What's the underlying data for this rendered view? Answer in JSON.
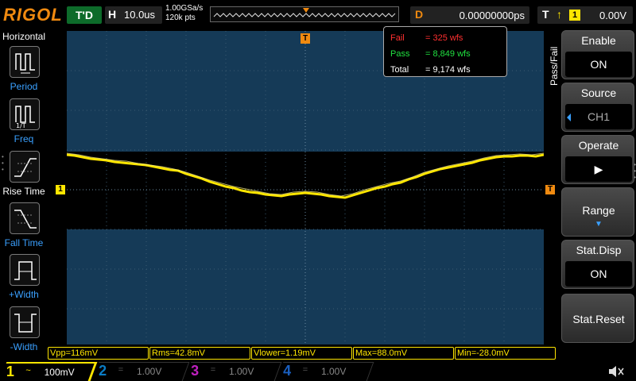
{
  "top": {
    "logo": "RIGOL",
    "trigger_status": "T'D",
    "horizontal_label": "H",
    "timebase": "10.0us",
    "sample_rate": "1.00GSa/s",
    "memory_depth": "120k pts",
    "delay_label": "D",
    "delay_value": "0.00000000ps",
    "trigger_label": "T",
    "trigger_edge": "↑",
    "trigger_source": "1",
    "trigger_level": "0.00V"
  },
  "left_menu": {
    "title": "Horizontal",
    "items": [
      {
        "label": "Period",
        "icon": "period-icon"
      },
      {
        "label": "Freq",
        "icon": "freq-icon"
      },
      {
        "label": "Rise Time",
        "icon": "rise-time-icon"
      },
      {
        "label": "Fall Time",
        "icon": "fall-time-icon"
      },
      {
        "label": "+Width",
        "icon": "positive-width-icon"
      },
      {
        "label": "-Width",
        "icon": "negative-width-icon"
      }
    ]
  },
  "screen": {
    "trigger_marker": "T",
    "ch1_marker": "1",
    "trigger_level_marker": "T",
    "passfail": {
      "fail_label": "Fail",
      "fail_value": "= 325 wfs",
      "pass_label": "Pass",
      "pass_value": "= 8,849 wfs",
      "total_label": "Total",
      "total_value": "= 9,174 wfs"
    }
  },
  "measurements": [
    "Vpp=116mV",
    "Rms=42.8mV",
    "Vlower=1.19mV",
    "Max=88.0mV",
    "Min=-28.0mV"
  ],
  "channels": [
    {
      "num": "1",
      "coupling": "~",
      "scale": "100mV",
      "color": "#ffe600"
    },
    {
      "num": "2",
      "coupling": "=",
      "scale": "1.00V",
      "color": "#0a7cc4"
    },
    {
      "num": "3",
      "coupling": "=",
      "scale": "1.00V",
      "color": "#c020c0"
    },
    {
      "num": "4",
      "coupling": "=",
      "scale": "1.00V",
      "color": "#1a5fbf"
    }
  ],
  "right_menu": {
    "tab": "Pass/Fail",
    "enable_title": "Enable",
    "enable_value": "ON",
    "source_title": "Source",
    "source_value": "CH1",
    "operate_title": "Operate",
    "operate_value": "▶",
    "range_title": "Range",
    "range_arrow": "▼",
    "statdisp_title": "Stat.Disp",
    "statdisp_value": "ON",
    "statreset_title": "Stat.Reset"
  },
  "colors": {
    "trace": "#ffe600",
    "screen_bg": "#153a57",
    "accent_orange": "#f08a10",
    "menu_blue": "#3aa0ff"
  }
}
